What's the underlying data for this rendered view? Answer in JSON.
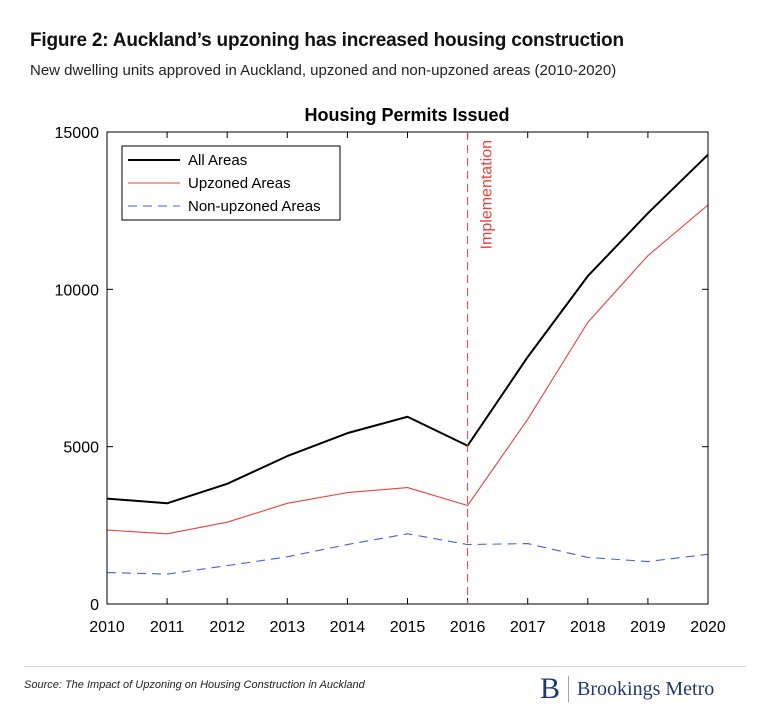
{
  "figure": {
    "title": "Figure 2: Auckland’s upzoning has increased housing construction",
    "subtitle": "New dwelling units approved in Auckland, upzoned and non-upzoned areas (2010-2020)"
  },
  "chart_data": {
    "type": "line",
    "title": "Housing Permits Issued",
    "xlabel": "",
    "ylabel": "",
    "x": [
      2010,
      2011,
      2012,
      2013,
      2014,
      2015,
      2016,
      2017,
      2018,
      2019,
      2020
    ],
    "xlim": [
      2010,
      2020
    ],
    "ylim": [
      0,
      15000
    ],
    "yticks": [
      0,
      5000,
      10000,
      15000
    ],
    "grid": false,
    "legend_position": "top-left",
    "series": [
      {
        "name": "All Areas",
        "color": "#000000",
        "style": "solid",
        "values": [
          3350,
          3200,
          3820,
          4700,
          5430,
          5950,
          5030,
          7850,
          10420,
          12420,
          14280
        ]
      },
      {
        "name": "Upzoned Areas",
        "color": "#e8413c",
        "style": "solid",
        "values": [
          2350,
          2230,
          2600,
          3200,
          3540,
          3700,
          3130,
          5870,
          8950,
          11070,
          12680
        ]
      },
      {
        "name": "Non-upzoned Areas",
        "color": "#4a5fd4",
        "style": "dashed",
        "values": [
          1000,
          950,
          1220,
          1500,
          1890,
          2230,
          1890,
          1920,
          1480,
          1350,
          1580
        ]
      }
    ],
    "annotations": [
      {
        "text": "Implementation",
        "x": 2016,
        "color": "#e8413c"
      }
    ]
  },
  "footer": {
    "source": "Source: The Impact of Upzoning on Housing Construction in Auckland",
    "logo_mark": "B",
    "logo_text": "Brookings Metro"
  },
  "colors": {
    "brand": "#1f3a6e",
    "axis": "#000000"
  }
}
